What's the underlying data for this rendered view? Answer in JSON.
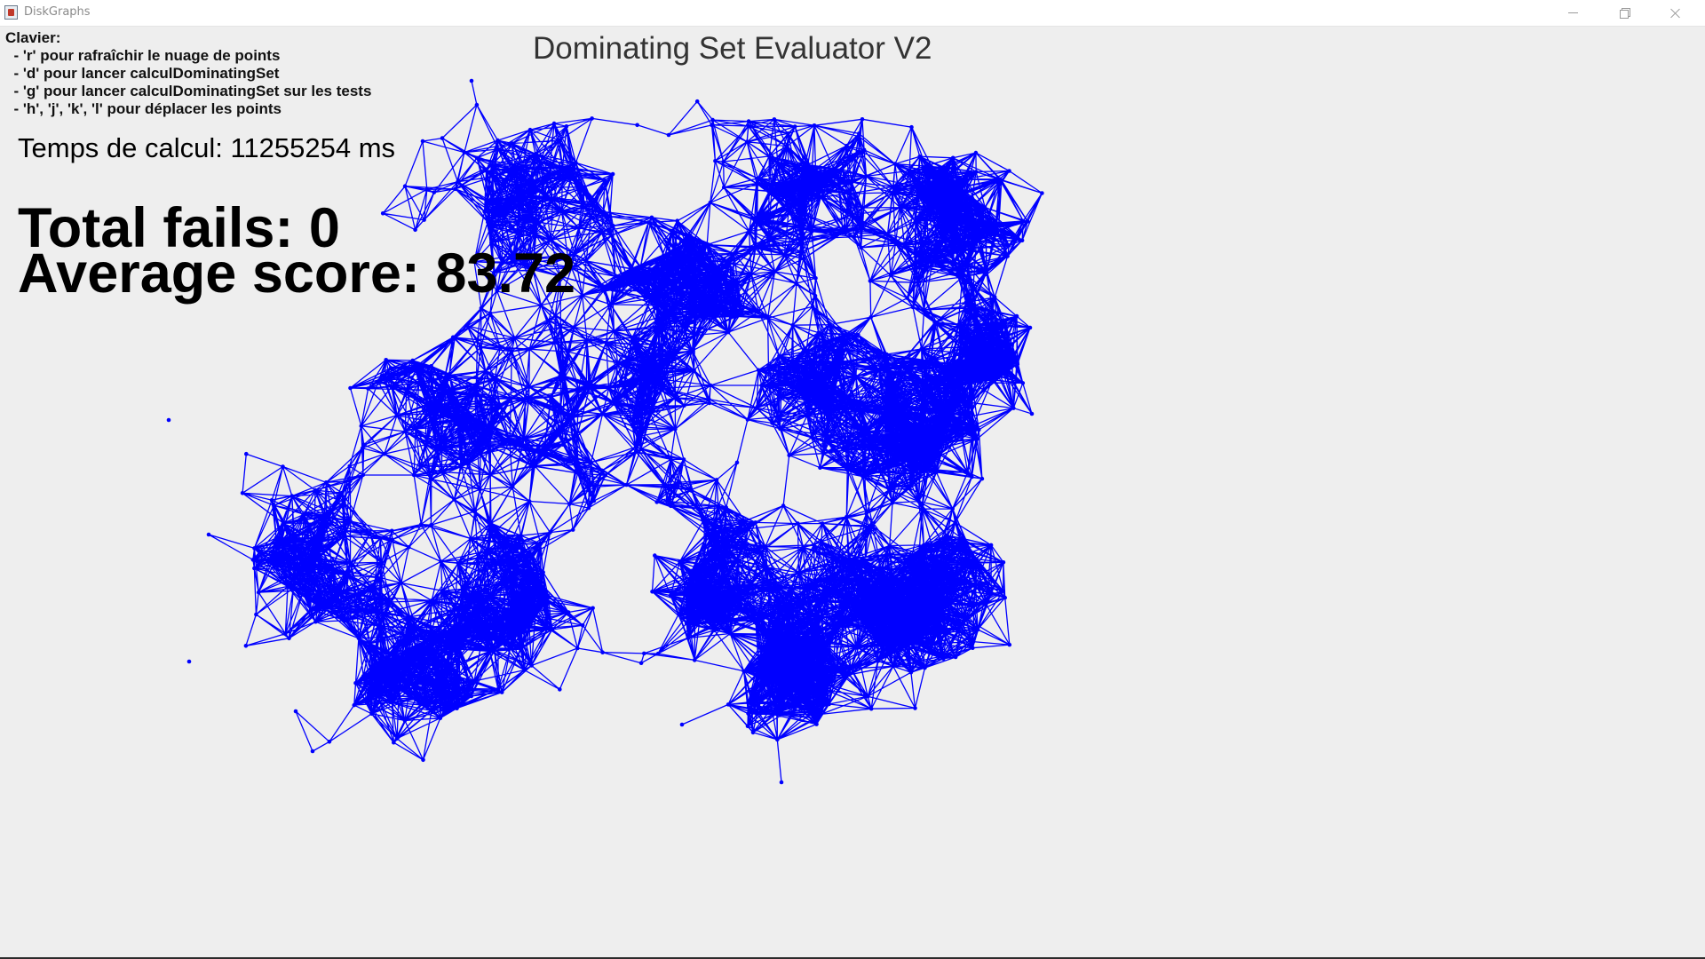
{
  "window": {
    "title": "DiskGraphs",
    "controls": {
      "minimize": "minimize-icon",
      "maximize": "restore-icon",
      "close": "close-icon"
    }
  },
  "app": {
    "heading": "Dominating Set Evaluator V2",
    "keyboard_help": {
      "title": "Clavier:",
      "lines": [
        "  - 'r' pour rafraîchir le nuage de points",
        "  - 'd' pour lancer calculDominatingSet",
        "  - 'g' pour lancer calculDominatingSet sur les tests",
        "  - 'h', 'j', 'k', 'l' pour déplacer les points"
      ]
    },
    "compute_time": "Temps de calcul: 11255254 ms",
    "total_fails": "Total fails: 0",
    "average_score": "Average score: 83.72",
    "graph_color": "#0000ff",
    "graph_type": "unit-disk graph"
  }
}
